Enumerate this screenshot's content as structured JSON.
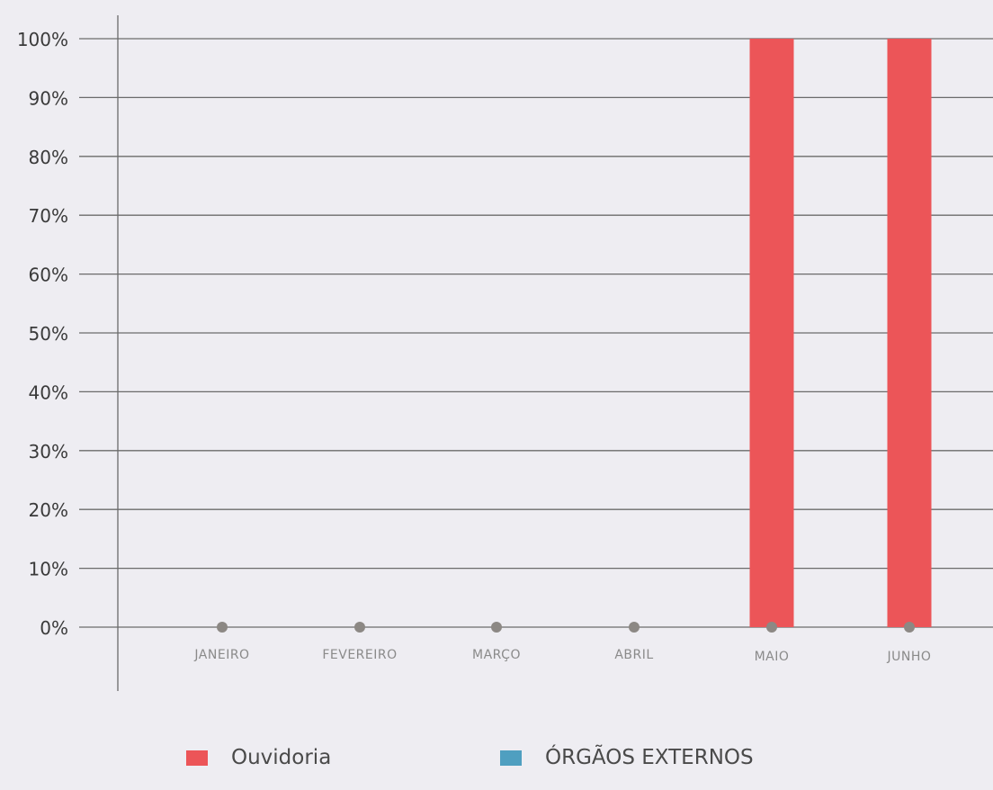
{
  "chart_data": {
    "type": "bar",
    "title": "",
    "xlabel": "",
    "ylabel": "",
    "categories": [
      "JANEIRO",
      "FEVEREIRO",
      "MARÇO",
      "ABRIL",
      "MAIO",
      "JUNHO"
    ],
    "series": [
      {
        "name": "Ouvidoria",
        "color": "#ec5558",
        "values": [
          0,
          0,
          0,
          0,
          100,
          100
        ]
      },
      {
        "name": "ÓRGÃOS EXTERNOS",
        "color": "#4f9fc0",
        "values": [
          0,
          0,
          0,
          0,
          0,
          0
        ]
      }
    ],
    "ylim": [
      0,
      100
    ],
    "yticks": [
      "0%",
      "10%",
      "20%",
      "30%",
      "40%",
      "50%",
      "60%",
      "70%",
      "80%",
      "90%",
      "100%"
    ],
    "grid": true,
    "legend_position": "bottom",
    "marker_color": "#8c8884",
    "grid_color": "#6b6b6b"
  }
}
